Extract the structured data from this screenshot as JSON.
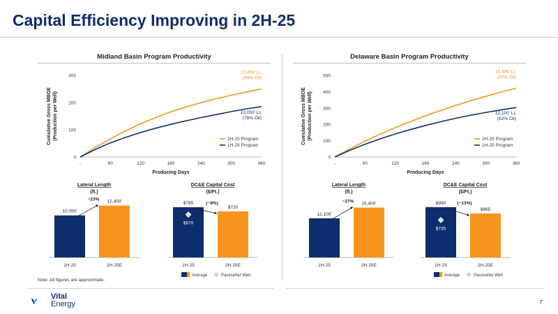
{
  "slide": {
    "title": "Capital Efficiency Improving in 2H-25",
    "note": "Note: All figures are approximate.",
    "page_number": "7",
    "logo": {
      "line1": "Vital",
      "line2": "Energy"
    }
  },
  "colors": {
    "navy": "#0e2d6d",
    "orange": "#f7941d",
    "dark_text": "#1f1f1f"
  },
  "chart_data": [
    {
      "id": "midland-productivity",
      "type": "line",
      "title": "Midland Basin Program Productivity",
      "xlabel": "Producing Days",
      "ylabel": "Cumulative Gross MBOE (Production per Well)",
      "xticks": [
        "-",
        "60",
        "120",
        "180",
        "240",
        "300",
        "360"
      ],
      "xlim": [
        0,
        360
      ],
      "yticks": [
        0,
        100,
        200,
        300
      ],
      "ylim": [
        0,
        300
      ],
      "x": [
        0,
        30,
        60,
        90,
        120,
        150,
        180,
        210,
        240,
        270,
        300,
        330,
        360
      ],
      "series": [
        {
          "name": "2H-25 Program",
          "color": "#f7941d",
          "values": [
            0,
            35,
            67,
            96,
            122,
            145,
            166,
            184,
            200,
            214,
            227,
            239,
            250
          ],
          "end_label": [
            "12,400' LL",
            "(69% Oil)"
          ]
        },
        {
          "name": "1H-25 Program",
          "color": "#0e2d6d",
          "values": [
            0,
            28,
            52,
            72,
            90,
            106,
            120,
            133,
            145,
            156,
            167,
            177,
            185
          ],
          "end_label": [
            "10,050' LL",
            "(78% Oil)"
          ]
        }
      ],
      "legend_position": "bottom-right"
    },
    {
      "id": "delaware-productivity",
      "type": "line",
      "title": "Delaware Basin Program Productivity",
      "xlabel": "Producing Days",
      "ylabel": "Cumulative Gross MBOE (Production per Well)",
      "xticks": [
        "-",
        "60",
        "120",
        "180",
        "240",
        "300",
        "360"
      ],
      "xlim": [
        0,
        360
      ],
      "yticks": [
        0,
        100,
        200,
        300,
        400,
        500
      ],
      "ylim": [
        0,
        500
      ],
      "x": [
        0,
        30,
        60,
        90,
        120,
        150,
        180,
        210,
        240,
        270,
        300,
        330,
        360
      ],
      "series": [
        {
          "name": "2H-25 Program",
          "color": "#f7941d",
          "values": [
            0,
            50,
            97,
            140,
            180,
            217,
            252,
            285,
            316,
            345,
            372,
            398,
            422
          ],
          "end_label": [
            "15,400' LL",
            "(67% Oil)"
          ]
        },
        {
          "name": "1H-25 Program",
          "color": "#0e2d6d",
          "values": [
            0,
            41,
            78,
            111,
            141,
            168,
            193,
            216,
            237,
            256,
            273,
            289,
            303
          ],
          "end_label": [
            "12,100' LL",
            "(62% Oil)"
          ]
        }
      ],
      "legend_position": "bottom-right"
    },
    {
      "id": "midland-lateral-length",
      "type": "bar",
      "title": "Lateral Length",
      "subtitle": "(ft.)",
      "categories": [
        "1H-25",
        "2H-25E"
      ],
      "values": [
        10050,
        12400
      ],
      "value_labels": [
        "10,050'",
        "12,400'"
      ],
      "colors": [
        "#0e2d6d",
        "#f7941d"
      ],
      "change_label": "~23%",
      "ylim": [
        0,
        13000
      ]
    },
    {
      "id": "midland-capital-cost",
      "type": "bar",
      "title": "DC&E Capital Cost",
      "subtitle": "($/Ft.)",
      "categories": [
        "1H-25",
        "2H-25E"
      ],
      "values": [
        785,
        720
      ],
      "value_labels": [
        "$785",
        "$720"
      ],
      "colors": [
        "#0e2d6d",
        "#f7941d"
      ],
      "change_label": "(~8%)",
      "pacesetter": {
        "value": 670,
        "label": "$670"
      },
      "legend": [
        "Average",
        "Pacesetter Well"
      ],
      "ylim": [
        0,
        850
      ]
    },
    {
      "id": "delaware-lateral-length",
      "type": "bar",
      "title": "Lateral Length",
      "subtitle": "(ft.)",
      "categories": [
        "1H-25",
        "2H-25E"
      ],
      "values": [
        12100,
        15400
      ],
      "value_labels": [
        "12,100'",
        "15,400'"
      ],
      "colors": [
        "#0e2d6d",
        "#f7941d"
      ],
      "change_label": "~27%",
      "ylim": [
        0,
        16800
      ]
    },
    {
      "id": "delaware-capital-cost",
      "type": "bar",
      "title": "DC&E Capital Cost",
      "subtitle": "($/Ft.)",
      "categories": [
        "1H-25",
        "2H-25E"
      ],
      "values": [
        990,
        865
      ],
      "value_labels": [
        "$990",
        "$865"
      ],
      "colors": [
        "#0e2d6d",
        "#f7941d"
      ],
      "change_label": "(~13%)",
      "pacesetter": {
        "value": 735,
        "label": "$735"
      },
      "legend": [
        "Average",
        "Pacesetter Well"
      ],
      "ylim": [
        0,
        1070
      ]
    }
  ]
}
